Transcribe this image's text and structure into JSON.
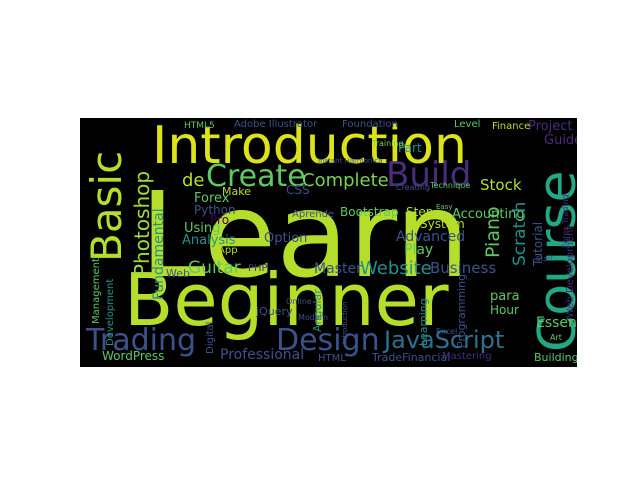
{
  "palette": {
    "background": "#000000",
    "lime": "#b5de2b",
    "yellow_green": "#8fd744",
    "green": "#5ec962",
    "teal": "#21918c",
    "teal_light": "#28ae80",
    "blue": "#3b528b",
    "indigo": "#472d7b",
    "purple": "#440154"
  },
  "words": [
    {
      "id": "learn",
      "text": "Learn",
      "color": "#b5de2b"
    },
    {
      "id": "beginner",
      "text": "Beginner",
      "color": "#b5de2b"
    },
    {
      "id": "introduction",
      "text": "Introduction",
      "color": "#dce319"
    },
    {
      "id": "course",
      "text": "Course",
      "color": "#22a884"
    },
    {
      "id": "basic",
      "text": "Basic",
      "color": "#b5de2b"
    },
    {
      "id": "build",
      "text": "Build",
      "color": "#472d7b"
    },
    {
      "id": "create",
      "text": "Create",
      "color": "#5ec962"
    },
    {
      "id": "design",
      "text": "Design",
      "color": "#3b528b"
    },
    {
      "id": "javascript",
      "text": "JavaScript",
      "color": "#2c728e"
    },
    {
      "id": "trading",
      "text": "Trading",
      "color": "#3b528b"
    },
    {
      "id": "complete",
      "text": "Complete",
      "color": "#7ad151"
    },
    {
      "id": "photoshop",
      "text": "Photoshop",
      "color": "#a0da39"
    },
    {
      "id": "website",
      "text": "Website",
      "color": "#21918c"
    },
    {
      "id": "business",
      "text": "Business",
      "color": "#3b528b"
    },
    {
      "id": "guitar",
      "text": "Guitar",
      "color": "#5ec962"
    },
    {
      "id": "scratch",
      "text": "Scratch",
      "color": "#21918c"
    },
    {
      "id": "piano",
      "text": "Piano",
      "color": "#5ec962"
    },
    {
      "id": "fundamental",
      "text": "Fundamental",
      "color": "#21918c"
    },
    {
      "id": "master",
      "text": "Master",
      "color": "#3b528b"
    },
    {
      "id": "professional",
      "text": "Professional",
      "color": "#3b528b"
    },
    {
      "id": "essential",
      "text": "Essential",
      "color": "#5ec962"
    },
    {
      "id": "advanced",
      "text": "Advanced",
      "color": "#3b528b"
    },
    {
      "id": "play",
      "text": "Play",
      "color": "#5ec962"
    },
    {
      "id": "stock",
      "text": "Stock",
      "color": "#b5de2b"
    },
    {
      "id": "accounting",
      "text": "Accounting",
      "color": "#5ec962"
    },
    {
      "id": "de",
      "text": "de",
      "color": "#b5de2b"
    },
    {
      "id": "forex",
      "text": "Forex",
      "color": "#5ec962"
    },
    {
      "id": "python",
      "text": "Python",
      "color": "#3b528b"
    },
    {
      "id": "make",
      "text": "Make",
      "color": "#b5de2b"
    },
    {
      "id": "css",
      "text": "CSS",
      "color": "#3b528b"
    },
    {
      "id": "using",
      "text": "Using",
      "color": "#5ec962"
    },
    {
      "id": "analysis",
      "text": "Analysis",
      "color": "#21918c"
    },
    {
      "id": "option",
      "text": "Option",
      "color": "#3b528b"
    },
    {
      "id": "pro",
      "text": "Pro",
      "color": "#440154"
    },
    {
      "id": "bootstrap",
      "text": "Bootstrap",
      "color": "#5ec962"
    },
    {
      "id": "step",
      "text": "Step",
      "color": "#b5de2b"
    },
    {
      "id": "system",
      "text": "System",
      "color": "#b5de2b"
    },
    {
      "id": "tutorial",
      "text": "Tutorial",
      "color": "#3b528b"
    },
    {
      "id": "guide",
      "text": "Guide",
      "color": "#472d7b"
    },
    {
      "id": "project",
      "text": "Project",
      "color": "#472d7b"
    },
    {
      "id": "part",
      "text": "Part",
      "color": "#21918c"
    },
    {
      "id": "foundation",
      "text": "Foundation",
      "color": "#3b528b"
    },
    {
      "id": "level",
      "text": "Level",
      "color": "#5ec962"
    },
    {
      "id": "finance",
      "text": "Finance",
      "color": "#b5de2b"
    },
    {
      "id": "adobe-illustrator",
      "text": "Adobe Illustrator",
      "color": "#3b528b"
    },
    {
      "id": "html5",
      "text": "HTML5",
      "color": "#5ec962"
    },
    {
      "id": "training",
      "text": "Training",
      "color": "#7ad151"
    },
    {
      "id": "aprende",
      "text": "Aprende",
      "color": "#3b528b"
    },
    {
      "id": "app",
      "text": "App",
      "color": "#b5de2b"
    },
    {
      "id": "php",
      "text": "PHP",
      "color": "#472d7b"
    },
    {
      "id": "web",
      "text": "Web",
      "color": "#3b528b"
    },
    {
      "id": "jquery",
      "text": "jQuery",
      "color": "#3b528b"
    },
    {
      "id": "angular",
      "text": "Angular",
      "color": "#21918c"
    },
    {
      "id": "html",
      "text": "HTML",
      "color": "#3b528b"
    },
    {
      "id": "wordpress",
      "text": "WordPress",
      "color": "#5ec962"
    },
    {
      "id": "digital",
      "text": "Digital",
      "color": "#3b528b"
    },
    {
      "id": "management",
      "text": "Management",
      "color": "#5ec962"
    },
    {
      "id": "development",
      "text": "Development",
      "color": "#21918c"
    },
    {
      "id": "building",
      "text": "Building",
      "color": "#5ec962"
    },
    {
      "id": "tradefinancial",
      "text": "TradeFinancial",
      "color": "#3b528b"
    },
    {
      "id": "mastering",
      "text": "Mastering",
      "color": "#472d7b"
    },
    {
      "id": "para",
      "text": "para",
      "color": "#5ec962"
    },
    {
      "id": "hour",
      "text": "Hour",
      "color": "#5ec962"
    },
    {
      "id": "excel",
      "text": "Excel",
      "color": "#3b528b"
    },
    {
      "id": "programming",
      "text": "Programming",
      "color": "#3b528b"
    },
    {
      "id": "learning",
      "text": "Learning",
      "color": "#21918c"
    },
    {
      "id": "web-development",
      "text": "Web Development",
      "color": "#472d7b"
    },
    {
      "id": "forex-trading",
      "text": "Forex Trading",
      "color": "#472d7b"
    },
    {
      "id": "creating",
      "text": "Creating",
      "color": "#3b528b"
    },
    {
      "id": "technique",
      "text": "Technique",
      "color": "#5ec962"
    },
    {
      "id": "modern",
      "text": "Modern",
      "color": "#3b528b"
    },
    {
      "id": "online",
      "text": "Online",
      "color": "#3b528b"
    },
    {
      "id": "art",
      "text": "Art",
      "color": "#5ec962"
    },
    {
      "id": "instant-harmonica",
      "text": "Instant Harmonica",
      "color": "#3b528b"
    },
    {
      "id": "introduction-small",
      "text": "Introduction",
      "color": "#3b528b"
    },
    {
      "id": "start",
      "text": "Start",
      "color": "#3b528b"
    },
    {
      "id": "easy",
      "text": "Easy",
      "color": "#5ec962"
    }
  ]
}
